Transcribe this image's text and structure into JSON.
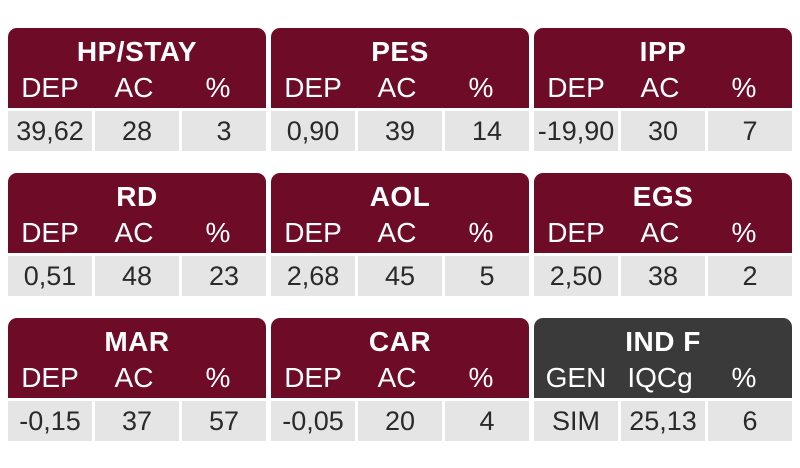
{
  "cards": [
    {
      "title": "HP/STAY",
      "style": "maroon",
      "cols": [
        "DEP",
        "AC",
        "%"
      ],
      "values": [
        "39,62",
        "28",
        "3"
      ]
    },
    {
      "title": "PES",
      "style": "maroon",
      "cols": [
        "DEP",
        "AC",
        "%"
      ],
      "values": [
        "0,90",
        "39",
        "14"
      ]
    },
    {
      "title": "IPP",
      "style": "maroon",
      "cols": [
        "DEP",
        "AC",
        "%"
      ],
      "values": [
        "-19,90",
        "30",
        "7"
      ]
    },
    {
      "title": "RD",
      "style": "maroon",
      "cols": [
        "DEP",
        "AC",
        "%"
      ],
      "values": [
        "0,51",
        "48",
        "23"
      ]
    },
    {
      "title": "AOL",
      "style": "maroon",
      "cols": [
        "DEP",
        "AC",
        "%"
      ],
      "values": [
        "2,68",
        "45",
        "5"
      ]
    },
    {
      "title": "EGS",
      "style": "maroon",
      "cols": [
        "DEP",
        "AC",
        "%"
      ],
      "values": [
        "2,50",
        "38",
        "2"
      ]
    },
    {
      "title": "MAR",
      "style": "maroon",
      "cols": [
        "DEP",
        "AC",
        "%"
      ],
      "values": [
        "-0,15",
        "37",
        "57"
      ]
    },
    {
      "title": "CAR",
      "style": "maroon",
      "cols": [
        "DEP",
        "AC",
        "%"
      ],
      "values": [
        "-0,05",
        "20",
        "4"
      ]
    },
    {
      "title": "IND F",
      "style": "dark",
      "cols": [
        "GEN",
        "IQCg",
        "%"
      ],
      "values": [
        "SIM",
        "25,13",
        "6"
      ]
    }
  ],
  "colors": {
    "maroon": "#6e0b27",
    "dark": "#3a3a3a",
    "cell_bg": "#e5e5e5"
  }
}
